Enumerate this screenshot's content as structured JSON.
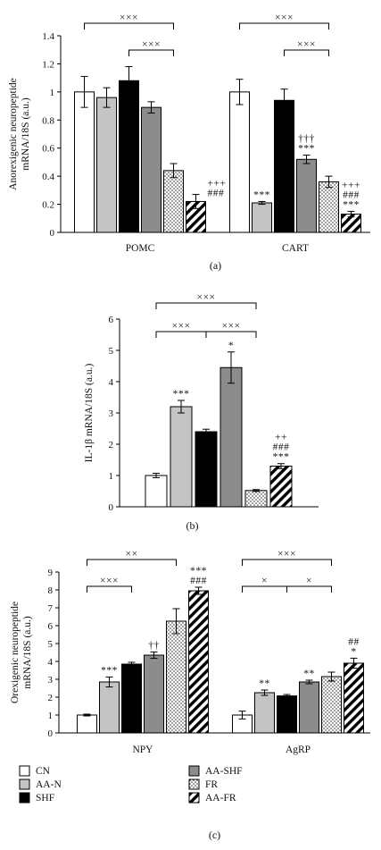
{
  "series": [
    {
      "key": "CN",
      "name": "CN",
      "fill": "#ffffff"
    },
    {
      "key": "AA-N",
      "name": "AA-N",
      "fill": "#c4c4c4"
    },
    {
      "key": "SHF",
      "name": "SHF",
      "fill": "#000000"
    },
    {
      "key": "AA-SHF",
      "name": "AA-SHF",
      "fill": "#8c8c8c"
    },
    {
      "key": "FR",
      "name": "FR",
      "fill": "dots"
    },
    {
      "key": "AA-FR",
      "name": "AA-FR",
      "fill": "hatch"
    }
  ],
  "chart_data": [
    {
      "type": "bar",
      "panel_label": "(a)",
      "ylabel": "Anorexigenic neuropeptide mRNA/18S (a.u.)",
      "ylabel_lines": [
        "Anorexigenic neuropeptide",
        "mRNA/18S (a.u.)"
      ],
      "ylim": [
        0,
        1.4
      ],
      "yticks": [
        "0",
        "0.2",
        "0.4",
        "0.6",
        "0.8",
        "1",
        "1.2",
        "1.4"
      ],
      "categories": [
        "POMC",
        "CART"
      ],
      "series": [
        {
          "name": "CN",
          "values": [
            1.0,
            1.0
          ],
          "errors": [
            0.11,
            0.09
          ]
        },
        {
          "name": "AA-N",
          "values": [
            0.96,
            0.21
          ],
          "errors": [
            0.07,
            0.01
          ]
        },
        {
          "name": "SHF",
          "values": [
            1.08,
            0.94
          ],
          "errors": [
            0.1,
            0.08
          ]
        },
        {
          "name": "AA-SHF",
          "values": [
            0.89,
            0.52
          ],
          "errors": [
            0.04,
            0.03
          ]
        },
        {
          "name": "FR",
          "values": [
            0.44,
            0.36
          ],
          "errors": [
            0.05,
            0.04
          ]
        },
        {
          "name": "AA-FR",
          "values": [
            0.22,
            0.13
          ],
          "errors": [
            0.05,
            0.02
          ]
        }
      ],
      "annotations": [
        {
          "cat": 1,
          "bar": 1,
          "lines": [
            "***"
          ]
        },
        {
          "cat": 1,
          "bar": 3,
          "lines": [
            "†††",
            "***"
          ]
        },
        {
          "cat": 0,
          "bar": 5,
          "lines": [
            "+++",
            "###"
          ],
          "side": "right"
        },
        {
          "cat": 1,
          "bar": 5,
          "lines": [
            "+++",
            "###",
            "***"
          ]
        }
      ],
      "brackets": [
        {
          "cat": 0,
          "from": 0,
          "to": 4,
          "level": 0,
          "label": "×××"
        },
        {
          "cat": 0,
          "from": 2,
          "to": 4,
          "level": 1,
          "label": "×××"
        },
        {
          "cat": 1,
          "from": 0,
          "to": 4,
          "level": 0,
          "label": "×××"
        },
        {
          "cat": 1,
          "from": 2,
          "to": 4,
          "level": 1,
          "label": "×××"
        }
      ]
    },
    {
      "type": "bar",
      "panel_label": "(b)",
      "ylabel": "IL-1β mRNA/18S (a.u.)",
      "ylabel_lines": [
        "IL-1β mRNA/18S (a.u.)"
      ],
      "ylim": [
        0,
        6
      ],
      "yticks": [
        "0",
        "1",
        "2",
        "3",
        "4",
        "5",
        "6"
      ],
      "categories": [
        ""
      ],
      "series": [
        {
          "name": "CN",
          "values": [
            1.0
          ],
          "errors": [
            0.07
          ]
        },
        {
          "name": "AA-N",
          "values": [
            3.2
          ],
          "errors": [
            0.2
          ]
        },
        {
          "name": "SHF",
          "values": [
            2.4
          ],
          "errors": [
            0.08
          ]
        },
        {
          "name": "AA-SHF",
          "values": [
            4.45
          ],
          "errors": [
            0.5
          ]
        },
        {
          "name": "FR",
          "values": [
            0.52
          ],
          "errors": [
            0.03
          ]
        },
        {
          "name": "AA-FR",
          "values": [
            1.3
          ],
          "errors": [
            0.08
          ]
        }
      ],
      "annotations": [
        {
          "cat": 0,
          "bar": 1,
          "lines": [
            "***"
          ]
        },
        {
          "cat": 0,
          "bar": 3,
          "lines": [
            "*"
          ]
        },
        {
          "cat": 0,
          "bar": 5,
          "lines": [
            "++",
            "###",
            "***"
          ]
        }
      ],
      "brackets": [
        {
          "cat": 0,
          "from": 0,
          "to": 4,
          "level": 0,
          "label": "×××"
        },
        {
          "cat": 0,
          "from": 0,
          "to": 2,
          "level": 1,
          "label": "×××"
        },
        {
          "cat": 0,
          "from": 2,
          "to": 4,
          "level": 1,
          "label": "×××"
        }
      ]
    },
    {
      "type": "bar",
      "panel_label": "(c)",
      "ylabel": "Orexigenic neuropeptide mRNA/18S (a.u.)",
      "ylabel_lines": [
        "Orexigenic neuropeptide",
        "mRNA/18S (a.u.)"
      ],
      "ylim": [
        0,
        9
      ],
      "yticks": [
        "0",
        "1",
        "2",
        "3",
        "4",
        "5",
        "6",
        "7",
        "8",
        "9"
      ],
      "categories": [
        "NPY",
        "AgRP"
      ],
      "series": [
        {
          "name": "CN",
          "values": [
            1.0,
            1.0
          ],
          "errors": [
            0.05,
            0.22
          ]
        },
        {
          "name": "AA-N",
          "values": [
            2.85,
            2.25
          ],
          "errors": [
            0.28,
            0.15
          ]
        },
        {
          "name": "SHF",
          "values": [
            3.85,
            2.07
          ],
          "errors": [
            0.1,
            0.08
          ]
        },
        {
          "name": "AA-SHF",
          "values": [
            4.35,
            2.85
          ],
          "errors": [
            0.18,
            0.1
          ]
        },
        {
          "name": "FR",
          "values": [
            6.25,
            3.15
          ],
          "errors": [
            0.7,
            0.25
          ]
        },
        {
          "name": "AA-FR",
          "values": [
            7.95,
            3.9
          ],
          "errors": [
            0.2,
            0.28
          ]
        }
      ],
      "annotations": [
        {
          "cat": 0,
          "bar": 1,
          "lines": [
            "***"
          ]
        },
        {
          "cat": 0,
          "bar": 3,
          "lines": [
            "††"
          ]
        },
        {
          "cat": 0,
          "bar": 5,
          "lines": [
            "***",
            "###"
          ]
        },
        {
          "cat": 1,
          "bar": 1,
          "lines": [
            "**"
          ]
        },
        {
          "cat": 1,
          "bar": 3,
          "lines": [
            "**"
          ]
        },
        {
          "cat": 1,
          "bar": 5,
          "lines": [
            "##",
            "*"
          ]
        }
      ],
      "brackets": [
        {
          "cat": 0,
          "from": 0,
          "to": 4,
          "level": 0,
          "label": "××"
        },
        {
          "cat": 0,
          "from": 0,
          "to": 2,
          "level": 1,
          "label": "×××"
        },
        {
          "cat": 1,
          "from": 0,
          "to": 4,
          "level": 0,
          "label": "×××"
        },
        {
          "cat": 1,
          "from": 0,
          "to": 2,
          "level": 1,
          "label": "×"
        },
        {
          "cat": 1,
          "from": 2,
          "to": 4,
          "level": 1,
          "label": "×"
        }
      ]
    }
  ]
}
